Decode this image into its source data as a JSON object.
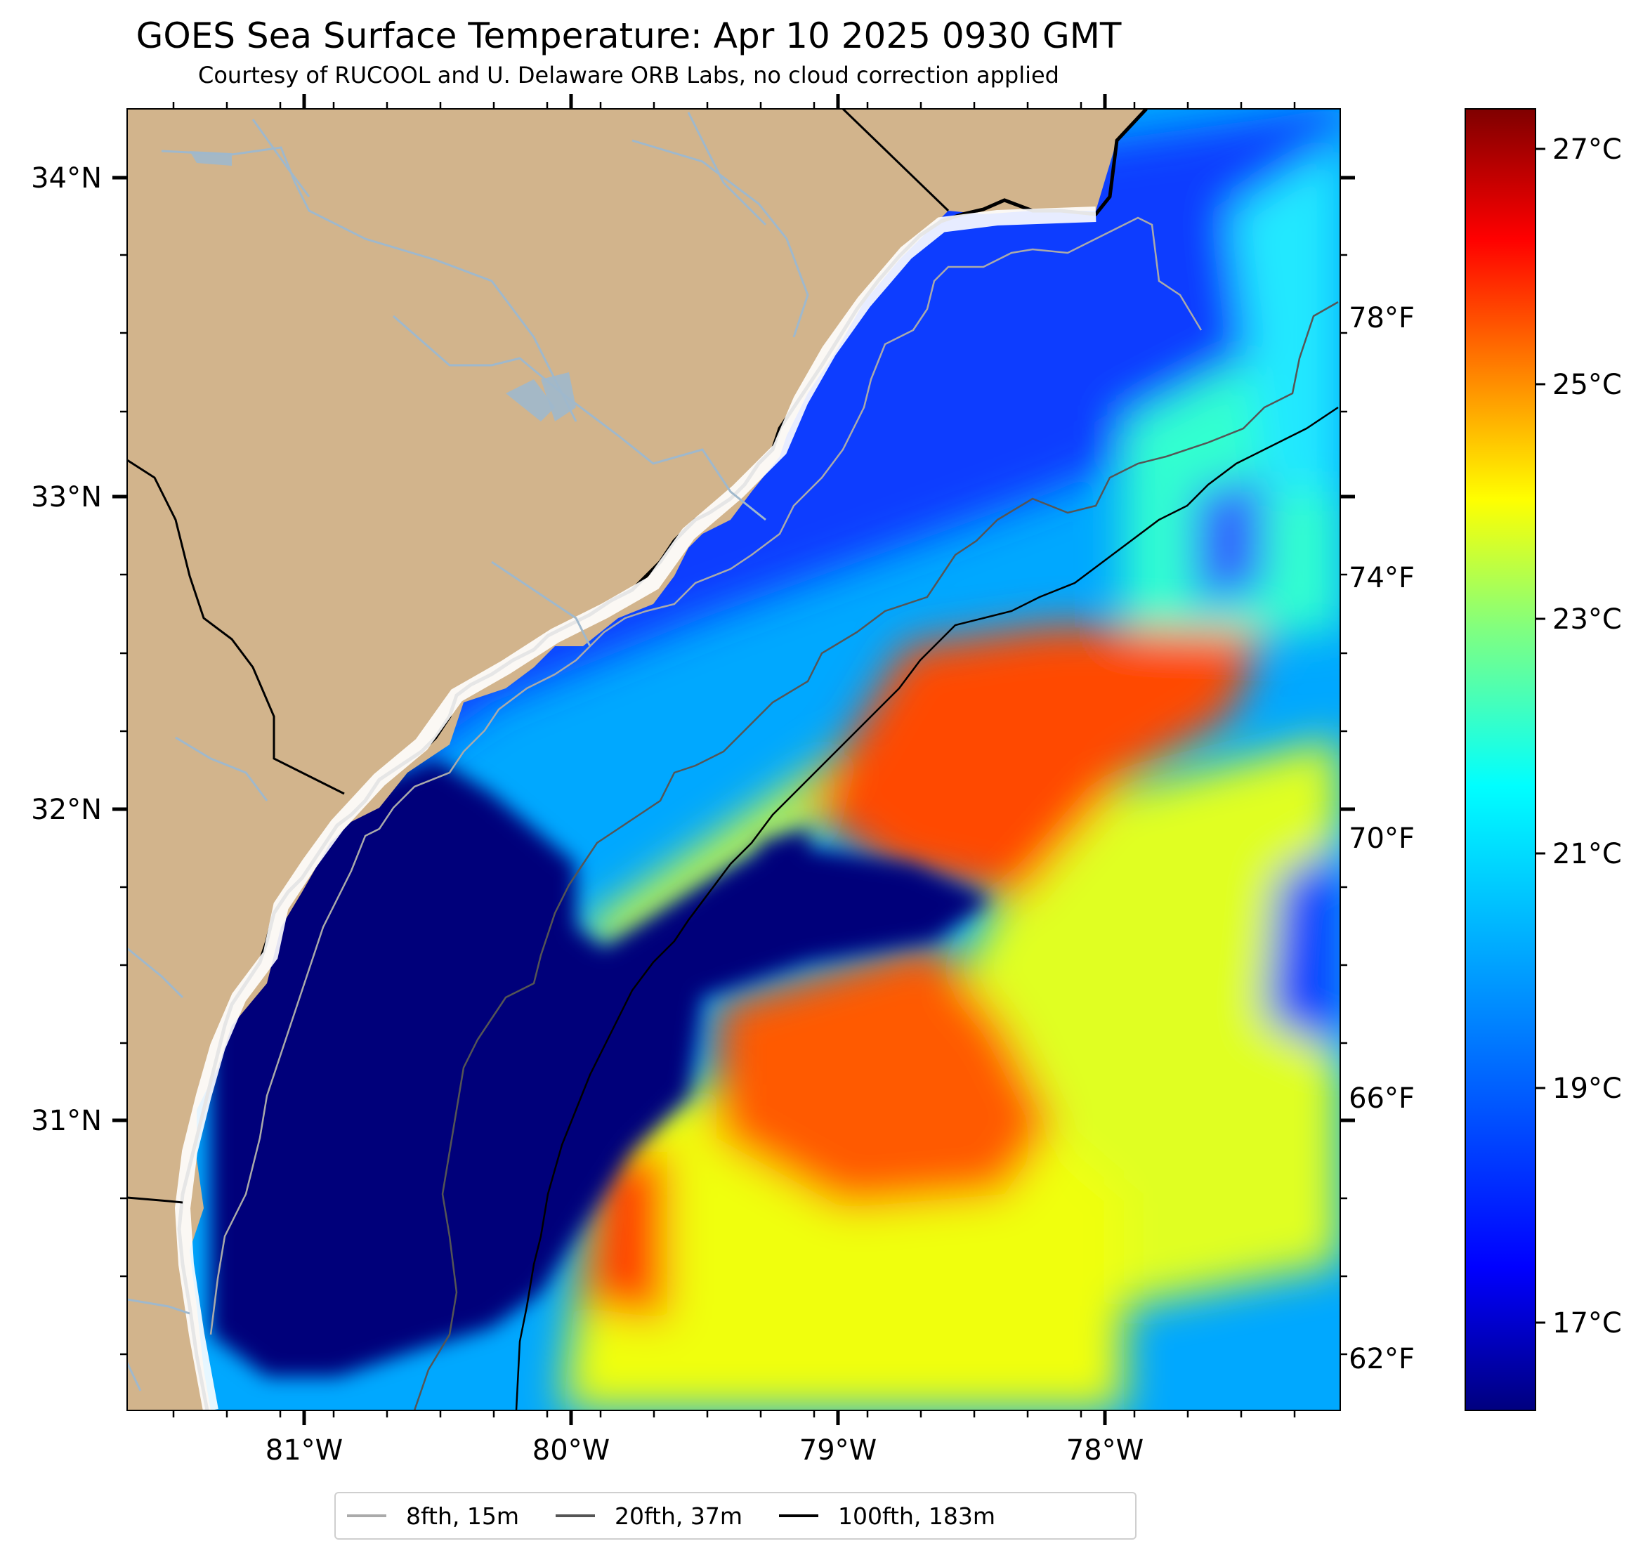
{
  "title": "GOES Sea Surface Temperature: Apr 10 2025 0930 GMT",
  "subtitle": "Courtesy of RUCOOL and U. Delaware ORB Labs, no cloud correction applied",
  "map": {
    "extent_lon": [
      -81.67,
      -77.12
    ],
    "extent_lat": [
      30.09,
      34.22
    ],
    "lat_ticks": [
      "34°N",
      "33°N",
      "32°N",
      "31°N"
    ],
    "lon_ticks": [
      "81°W",
      "80°W",
      "79°W",
      "78°W"
    ],
    "land_color": "#d2b48c",
    "river_color": "#9fb8cc"
  },
  "colorbar": {
    "celsius_labels": [
      "27°C",
      "25°C",
      "23°C",
      "21°C",
      "19°C",
      "17°C"
    ],
    "fahrenheit_labels": [
      "78°F",
      "74°F",
      "70°F",
      "66°F",
      "62°F"
    ],
    "colormap": "jet",
    "colors": [
      "#00007f",
      "#0000ff",
      "#0080ff",
      "#00ffff",
      "#80ff80",
      "#ffff00",
      "#ff8000",
      "#ff0000",
      "#7f0000"
    ]
  },
  "legend": {
    "items": [
      {
        "label": "8fth, 15m",
        "color": "#aaaaaa"
      },
      {
        "label": "20fth, 37m",
        "color": "#555555"
      },
      {
        "label": "100fth, 183m",
        "color": "#000000"
      }
    ]
  }
}
